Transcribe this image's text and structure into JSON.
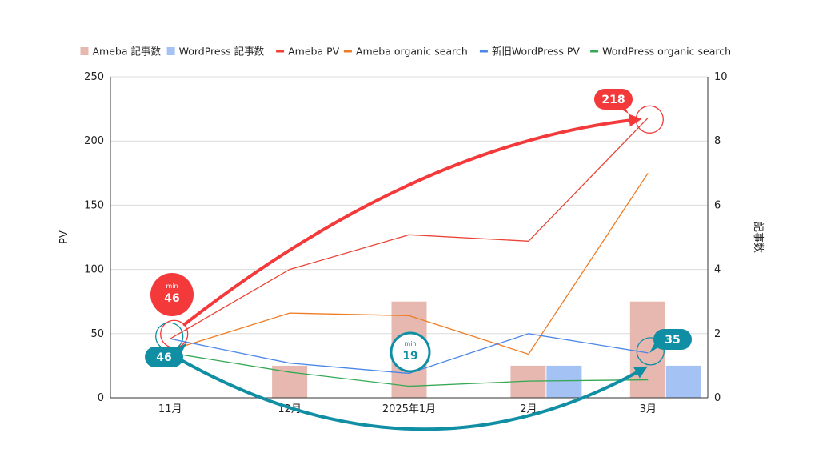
{
  "chart_data": {
    "type": "combo",
    "categories": [
      "11月",
      "12月",
      "2025年1月",
      "2月",
      "3月"
    ],
    "y_left": {
      "label": "PV",
      "min": 0,
      "max": 250,
      "ticks": [
        0,
        50,
        100,
        150,
        200,
        250
      ]
    },
    "y_right": {
      "label": "記事数",
      "min": 0,
      "max": 10,
      "ticks": [
        0,
        2,
        4,
        6,
        8,
        10
      ]
    },
    "grid": true,
    "legend_position": "top",
    "bar_series": [
      {
        "name": "Ameba 記事数",
        "color": "#e6b8af",
        "values": [
          0,
          1,
          3,
          1,
          3
        ]
      },
      {
        "name": "WordPress 記事数",
        "color": "#a4c2f4",
        "values": [
          0,
          0,
          0,
          1,
          1
        ]
      }
    ],
    "line_series": [
      {
        "name": "Ameba PV",
        "color": "#ea4335",
        "values": [
          46,
          100,
          127,
          122,
          218
        ]
      },
      {
        "name": "Ameba organic search",
        "color": "#f07b22",
        "values": [
          37,
          66,
          64,
          34,
          175
        ]
      },
      {
        "name": "新旧WordPress PV",
        "color": "#4a86e8",
        "values": [
          46,
          27,
          19,
          50,
          35
        ]
      },
      {
        "name": "WordPress organic search",
        "color": "#34a853",
        "values": [
          35,
          20,
          9,
          13,
          14
        ]
      }
    ],
    "annotations": [
      {
        "label_small": "min",
        "value": "46",
        "color": "#f4393a",
        "target_series": 0,
        "target_index": 0
      },
      {
        "label_small": "",
        "value": "218",
        "color": "#f4393a",
        "target_series": 0,
        "target_index": 4
      },
      {
        "label_small": "",
        "value": "46",
        "color": "#0f8ea4",
        "target_series": 2,
        "target_index": 0
      },
      {
        "label_small": "min",
        "value": "19",
        "color": "#0f8ea4",
        "target_series": 2,
        "target_index": 2
      },
      {
        "label_small": "",
        "value": "35",
        "color": "#0f8ea4",
        "target_series": 2,
        "target_index": 4
      }
    ]
  }
}
